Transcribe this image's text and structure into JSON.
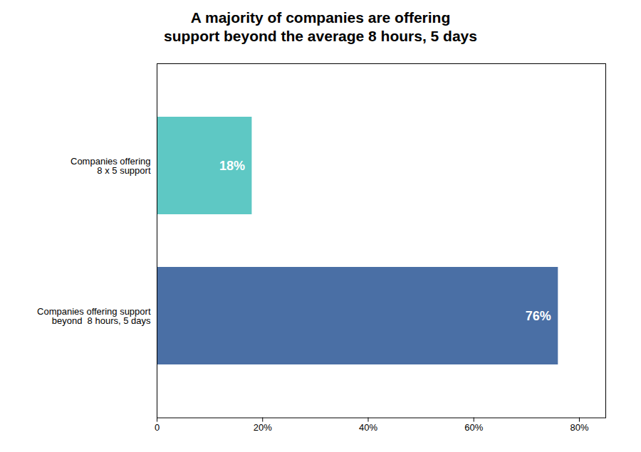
{
  "chart_data": {
    "type": "bar",
    "orientation": "horizontal",
    "title": "A majority of companies are offering\nsupport beyond the average 8 hours, 5 days",
    "categories": [
      "Companies offering support\nbeyond  8 hours, 5 days",
      "Companies offering\n8 x 5 support"
    ],
    "values": [
      76,
      18
    ],
    "value_labels": [
      "76%",
      "18%"
    ],
    "data_labels": true,
    "colors": [
      "#4a6fa5",
      "#5ec8c4"
    ],
    "xlim": [
      0,
      85
    ],
    "xticks": [
      0,
      {
        "value": 20,
        "label": "20%"
      },
      {
        "value": 40,
        "label": "40%"
      },
      {
        "value": 60,
        "label": "60%"
      },
      {
        "value": 80,
        "label": "80%"
      }
    ],
    "grid": false
  }
}
